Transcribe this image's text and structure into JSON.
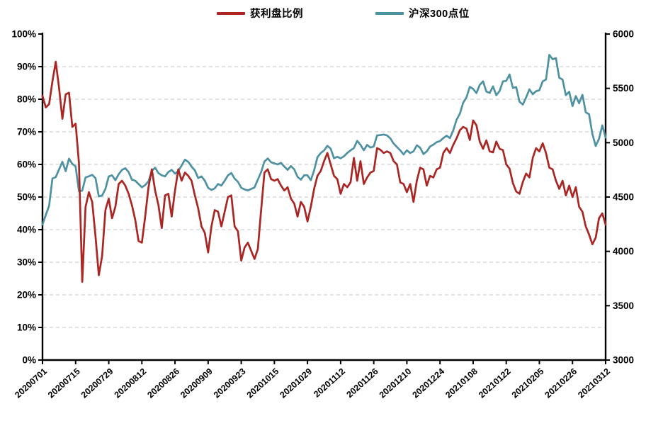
{
  "legend": {
    "items": [
      {
        "label": "获利盘比例",
        "color": "#ab2522"
      },
      {
        "label": "沪深300点位",
        "color": "#4d91a3"
      }
    ]
  },
  "chart_data": {
    "type": "line",
    "title": "",
    "grid": "horizontal-dashed",
    "legend_position": "top-center",
    "x_tick_labels": [
      "20200701",
      "20200715",
      "20200729",
      "20200812",
      "20200826",
      "20200909",
      "20200923",
      "20201015",
      "20201029",
      "20201112",
      "20201126",
      "20201210",
      "20201224",
      "20210108",
      "20210122",
      "20210205",
      "20210226",
      "20210312"
    ],
    "x_tick_day_indices": [
      0,
      10,
      20,
      30,
      40,
      50,
      60,
      70,
      80,
      90,
      100,
      110,
      120,
      130,
      140,
      150,
      160,
      170
    ],
    "left_axis": {
      "min": 0,
      "max": 100,
      "step": 10,
      "unit": "%",
      "ticks": [
        "0%",
        "10%",
        "20%",
        "30%",
        "40%",
        "50%",
        "60%",
        "70%",
        "80%",
        "90%",
        "100%"
      ]
    },
    "right_axis": {
      "min": 3000,
      "max": 6000,
      "step": 500,
      "ticks": [
        "3000",
        "3500",
        "4000",
        "4500",
        "5000",
        "5500",
        "6000"
      ]
    },
    "series": [
      {
        "name": "沪深300点位",
        "axis": "right",
        "color": "#4d91a3",
        "values": [
          4247,
          4336,
          4420,
          4670,
          4683,
          4754,
          4824,
          4738,
          4853,
          4805,
          4782,
          4553,
          4559,
          4680,
          4691,
          4704,
          4674,
          4506,
          4514,
          4575,
          4690,
          4700,
          4655,
          4710,
          4750,
          4765,
          4730,
          4660,
          4650,
          4620,
          4590,
          4610,
          4645,
          4740,
          4770,
          4720,
          4700,
          4690,
          4730,
          4750,
          4715,
          4740,
          4790,
          4844,
          4824,
          4780,
          4745,
          4675,
          4690,
          4650,
          4585,
          4565,
          4580,
          4620,
          4605,
          4650,
          4700,
          4721,
          4670,
          4640,
          4585,
          4570,
          4560,
          4575,
          4588,
          4660,
          4730,
          4827,
          4855,
          4820,
          4810,
          4800,
          4815,
          4780,
          4750,
          4785,
          4755,
          4685,
          4660,
          4700,
          4700,
          4655,
          4745,
          4866,
          4905,
          4929,
          4971,
          4945,
          4857,
          4870,
          4856,
          4875,
          4905,
          4930,
          4950,
          5017,
          4980,
          4930,
          4980,
          4955,
          4965,
          5067,
          5070,
          5075,
          5067,
          5040,
          4992,
          4960,
          4930,
          4892,
          4930,
          4905,
          4920,
          4976,
          4954,
          4895,
          4920,
          4965,
          4982,
          5005,
          5015,
          5042,
          5064,
          5042,
          5114,
          5211,
          5267,
          5368,
          5418,
          5514,
          5495,
          5457,
          5532,
          5565,
          5470,
          5458,
          5518,
          5437,
          5476,
          5564,
          5569,
          5628,
          5504,
          5512,
          5377,
          5351,
          5417,
          5491,
          5446,
          5474,
          5483,
          5564,
          5581,
          5808,
          5768,
          5778,
          5597,
          5581,
          5437,
          5469,
          5337,
          5429,
          5363,
          5441,
          5280,
          5262,
          5080,
          4970,
          5035,
          5160,
          5047
        ]
      },
      {
        "name": "获利盘比例",
        "axis": "left",
        "color": "#ab2522",
        "unit": "%",
        "values": [
          81,
          77.5,
          78.5,
          85.5,
          91.5,
          83.5,
          74,
          81.5,
          82,
          71.5,
          72.5,
          60.5,
          24,
          47,
          51.5,
          48.5,
          38,
          26,
          32,
          46,
          49.5,
          43.5,
          47,
          54,
          55,
          53.5,
          51,
          47.5,
          43,
          36.5,
          36,
          44,
          53,
          58.5,
          52,
          47.5,
          40.5,
          50.5,
          51,
          44,
          52,
          58.5,
          55,
          57.5,
          56.5,
          55,
          50.5,
          46.5,
          41,
          39,
          33,
          41,
          46,
          45.5,
          41,
          45.5,
          50,
          50.5,
          41,
          39.5,
          30.5,
          34.5,
          36,
          33.5,
          31,
          34,
          46,
          57.5,
          58.5,
          55.5,
          55,
          55.5,
          53.5,
          52,
          53,
          49.5,
          48,
          44,
          48.5,
          47,
          42.5,
          47,
          52.5,
          56.5,
          58,
          61,
          63.5,
          60,
          56.5,
          55.5,
          51,
          54,
          53,
          54.5,
          62,
          55,
          61,
          54,
          56,
          57.5,
          58,
          65,
          64.5,
          63.5,
          64,
          63.5,
          61,
          60,
          54.5,
          54,
          51.5,
          54,
          48.5,
          55,
          59,
          58.5,
          53.5,
          56.5,
          56,
          58.5,
          59,
          63.5,
          65,
          63.5,
          66,
          68,
          70.5,
          71.5,
          71,
          67.5,
          73.5,
          72,
          67,
          64.8,
          67.4,
          64,
          63.7,
          67,
          64.8,
          64.4,
          60,
          58.7,
          54.3,
          51.7,
          51,
          54.6,
          57.2,
          56,
          62,
          65,
          64,
          66.5,
          63.5,
          59,
          58.5,
          55,
          52.5,
          55,
          50.5,
          53.5,
          50,
          53,
          47,
          45.5,
          41,
          38.5,
          35.5,
          37.5,
          43.5,
          45,
          41.5
        ]
      }
    ]
  },
  "style": {
    "grid_color": "#c6c6c6",
    "axis_color": "#000000",
    "background": "#ffffff"
  }
}
